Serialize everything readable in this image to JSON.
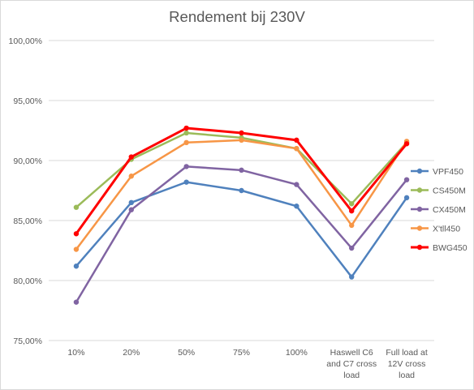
{
  "chart_data": {
    "type": "line",
    "title": "Rendement bij 230V",
    "xlabel": "",
    "ylabel": "",
    "categories": [
      "10%",
      "20%",
      "50%",
      "75%",
      "100%",
      "Haswell C6 and C7 cross load",
      "Full load at 12V cross load"
    ],
    "category_lines": [
      [
        "10%"
      ],
      [
        "20%"
      ],
      [
        "50%"
      ],
      [
        "75%"
      ],
      [
        "100%"
      ],
      [
        "Haswell C6",
        "and C7 cross",
        "load"
      ],
      [
        "Full load at",
        "12V cross",
        "load"
      ]
    ],
    "ylim": [
      75,
      100
    ],
    "ytick_values": [
      75,
      80,
      85,
      90,
      95,
      100
    ],
    "ytick_labels": [
      "75,00%",
      "80,00%",
      "85,00%",
      "90,00%",
      "95,00%",
      "100,00%"
    ],
    "grid": "horizontal",
    "legend_position": "right",
    "series": [
      {
        "name": "VPF450",
        "color": "#4f81bd",
        "values": [
          81.2,
          86.5,
          88.2,
          87.5,
          86.2,
          80.3,
          86.9
        ]
      },
      {
        "name": "CS450M",
        "color": "#9bbb59",
        "values": [
          86.1,
          90.1,
          92.3,
          91.9,
          91.0,
          86.4,
          91.5
        ]
      },
      {
        "name": "CX450M",
        "color": "#8064a2",
        "values": [
          78.2,
          85.9,
          89.5,
          89.2,
          88.0,
          82.7,
          88.4
        ]
      },
      {
        "name": "X'tll450",
        "color": "#f79646",
        "values": [
          82.6,
          88.7,
          91.5,
          91.7,
          91.0,
          84.6,
          91.6
        ]
      },
      {
        "name": "BWG450",
        "color": "#ff0000",
        "values": [
          83.9,
          90.3,
          92.7,
          92.3,
          91.7,
          85.8,
          91.4
        ]
      }
    ]
  }
}
